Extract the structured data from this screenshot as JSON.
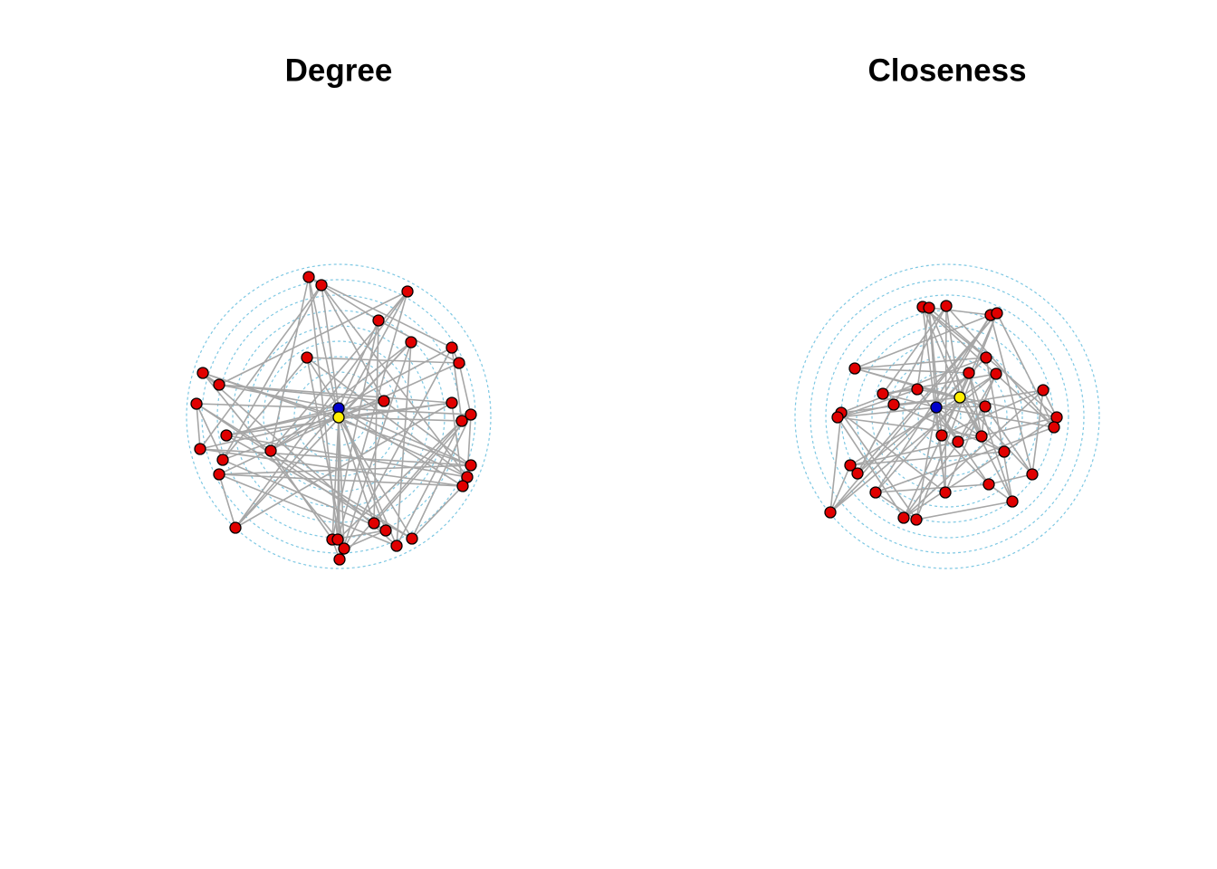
{
  "panels": [
    {
      "title": "Degree"
    },
    {
      "title": "Closeness"
    }
  ]
}
